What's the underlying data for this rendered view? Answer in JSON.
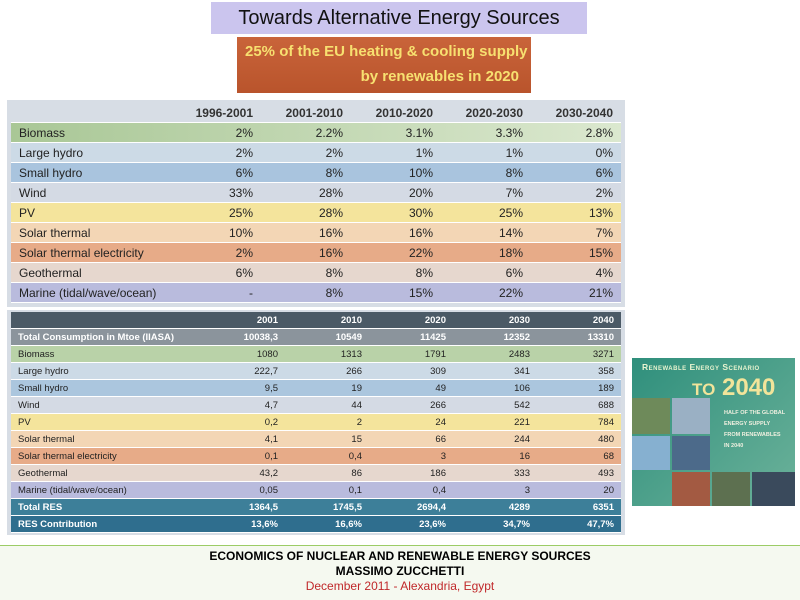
{
  "title": "Towards Alternative Energy Sources",
  "banner": [
    "25% of the EU heating & cooling supply",
    "by renewables in 2020"
  ],
  "table1": {
    "columns": [
      "1996-2001",
      "2001-2010",
      "2010-2020",
      "2020-2030",
      "2030-2040"
    ],
    "rows": [
      [
        "Biomass",
        "2%",
        "2.2%",
        "3.1%",
        "3.3%",
        "2.8%"
      ],
      [
        "Large hydro",
        "2%",
        "2%",
        "1%",
        "1%",
        "0%"
      ],
      [
        "Small hydro",
        "6%",
        "8%",
        "10%",
        "8%",
        "6%"
      ],
      [
        "Wind",
        "33%",
        "28%",
        "20%",
        "7%",
        "2%"
      ],
      [
        "PV",
        "25%",
        "28%",
        "30%",
        "25%",
        "13%"
      ],
      [
        "Solar thermal",
        "10%",
        "16%",
        "16%",
        "14%",
        "7%"
      ],
      [
        "Solar thermal electricity",
        "2%",
        "16%",
        "22%",
        "18%",
        "15%"
      ],
      [
        "Geothermal",
        "6%",
        "8%",
        "8%",
        "6%",
        "4%"
      ],
      [
        "Marine (tidal/wave/ocean)",
        "-",
        "8%",
        "15%",
        "22%",
        "21%"
      ]
    ]
  },
  "table2": {
    "columns": [
      "2001",
      "2010",
      "2020",
      "2030",
      "2040"
    ],
    "rows": [
      [
        "Total Consumption in Mtoe (IIASA)",
        "10038,3",
        "10549",
        "11425",
        "12352",
        "13310"
      ],
      [
        "Biomass",
        "1080",
        "1313",
        "1791",
        "2483",
        "3271"
      ],
      [
        "Large hydro",
        "222,7",
        "266",
        "309",
        "341",
        "358"
      ],
      [
        "Small hydro",
        "9,5",
        "19",
        "49",
        "106",
        "189"
      ],
      [
        "Wind",
        "4,7",
        "44",
        "266",
        "542",
        "688"
      ],
      [
        "PV",
        "0,2",
        "2",
        "24",
        "221",
        "784"
      ],
      [
        "Solar thermal",
        "4,1",
        "15",
        "66",
        "244",
        "480"
      ],
      [
        "Solar thermal electricity",
        "0,1",
        "0,4",
        "3",
        "16",
        "68"
      ],
      [
        "Geothermal",
        "43,2",
        "86",
        "186",
        "333",
        "493"
      ],
      [
        "Marine (tidal/wave/ocean)",
        "0,05",
        "0,1",
        "0,4",
        "3",
        "20"
      ],
      [
        "Total RES",
        "1364,5",
        "1745,5",
        "2694,4",
        "4289",
        "6351"
      ],
      [
        "RES Contribution",
        "13,6%",
        "16,6%",
        "23,6%",
        "34,7%",
        "47,7%"
      ]
    ]
  },
  "cover": {
    "heading": "Renewable Energy Scenario",
    "subheading": "to 2040",
    "note": [
      "Half of the global",
      "energy supply",
      "from renewables",
      "in 2040"
    ]
  },
  "footer": [
    "ECONOMICS OF NUCLEAR AND RENEWABLE ENERGY SOURCES",
    "MASSIMO ZUCCHETTI",
    "December 2011 - Alexandria, Egypt"
  ]
}
